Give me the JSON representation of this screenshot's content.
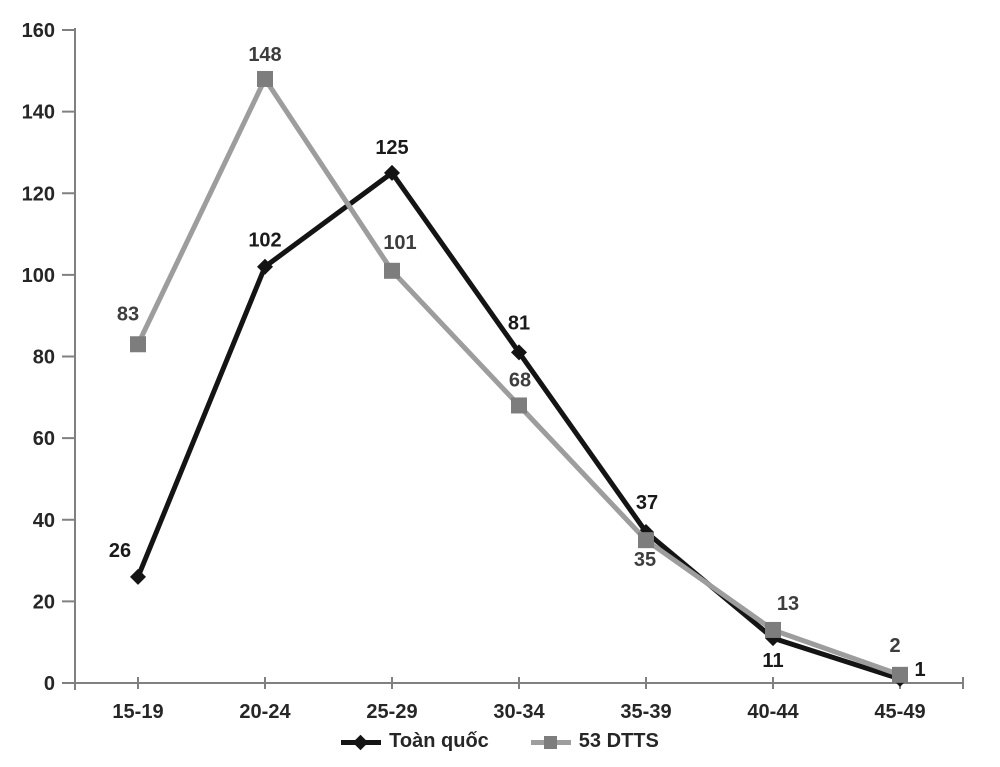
{
  "chart_data": {
    "type": "line",
    "title": "",
    "xlabel": "",
    "ylabel": "",
    "categories": [
      "15-19",
      "20-24",
      "25-29",
      "30-34",
      "35-39",
      "40-44",
      "45-49"
    ],
    "series": [
      {
        "name": "Toàn quốc",
        "values": [
          26,
          102,
          125,
          81,
          37,
          11,
          1
        ],
        "color": "#141414",
        "marker": "diamond",
        "marker_color": "#141414",
        "label_color": "#1a1a1a",
        "label_offsets": [
          [
            -18,
            -27
          ],
          [
            0,
            -27
          ],
          [
            0,
            -26
          ],
          [
            0,
            -30
          ],
          [
            1,
            -30
          ],
          [
            0,
            22
          ],
          [
            20,
            -10
          ]
        ]
      },
      {
        "name": "53 DTTS",
        "values": [
          83,
          148,
          101,
          68,
          35,
          13,
          2
        ],
        "color": "#9d9d9d",
        "marker": "square",
        "marker_color": "#7d7d7d",
        "label_color": "#3d3d3d",
        "label_offsets": [
          [
            -10,
            -31
          ],
          [
            0,
            -25
          ],
          [
            8,
            -29
          ],
          [
            1,
            -26
          ],
          [
            -1,
            19
          ],
          [
            15,
            -27
          ],
          [
            -5,
            -30
          ]
        ]
      }
    ],
    "ylim": [
      0,
      160
    ],
    "ytick_step": 20,
    "ytick_labels": [
      "0",
      "20",
      "40",
      "60",
      "80",
      "100",
      "120",
      "140",
      "160"
    ],
    "grid": false,
    "legend_position": "bottom",
    "axis_color": "#808080",
    "text_color": "#262626"
  }
}
